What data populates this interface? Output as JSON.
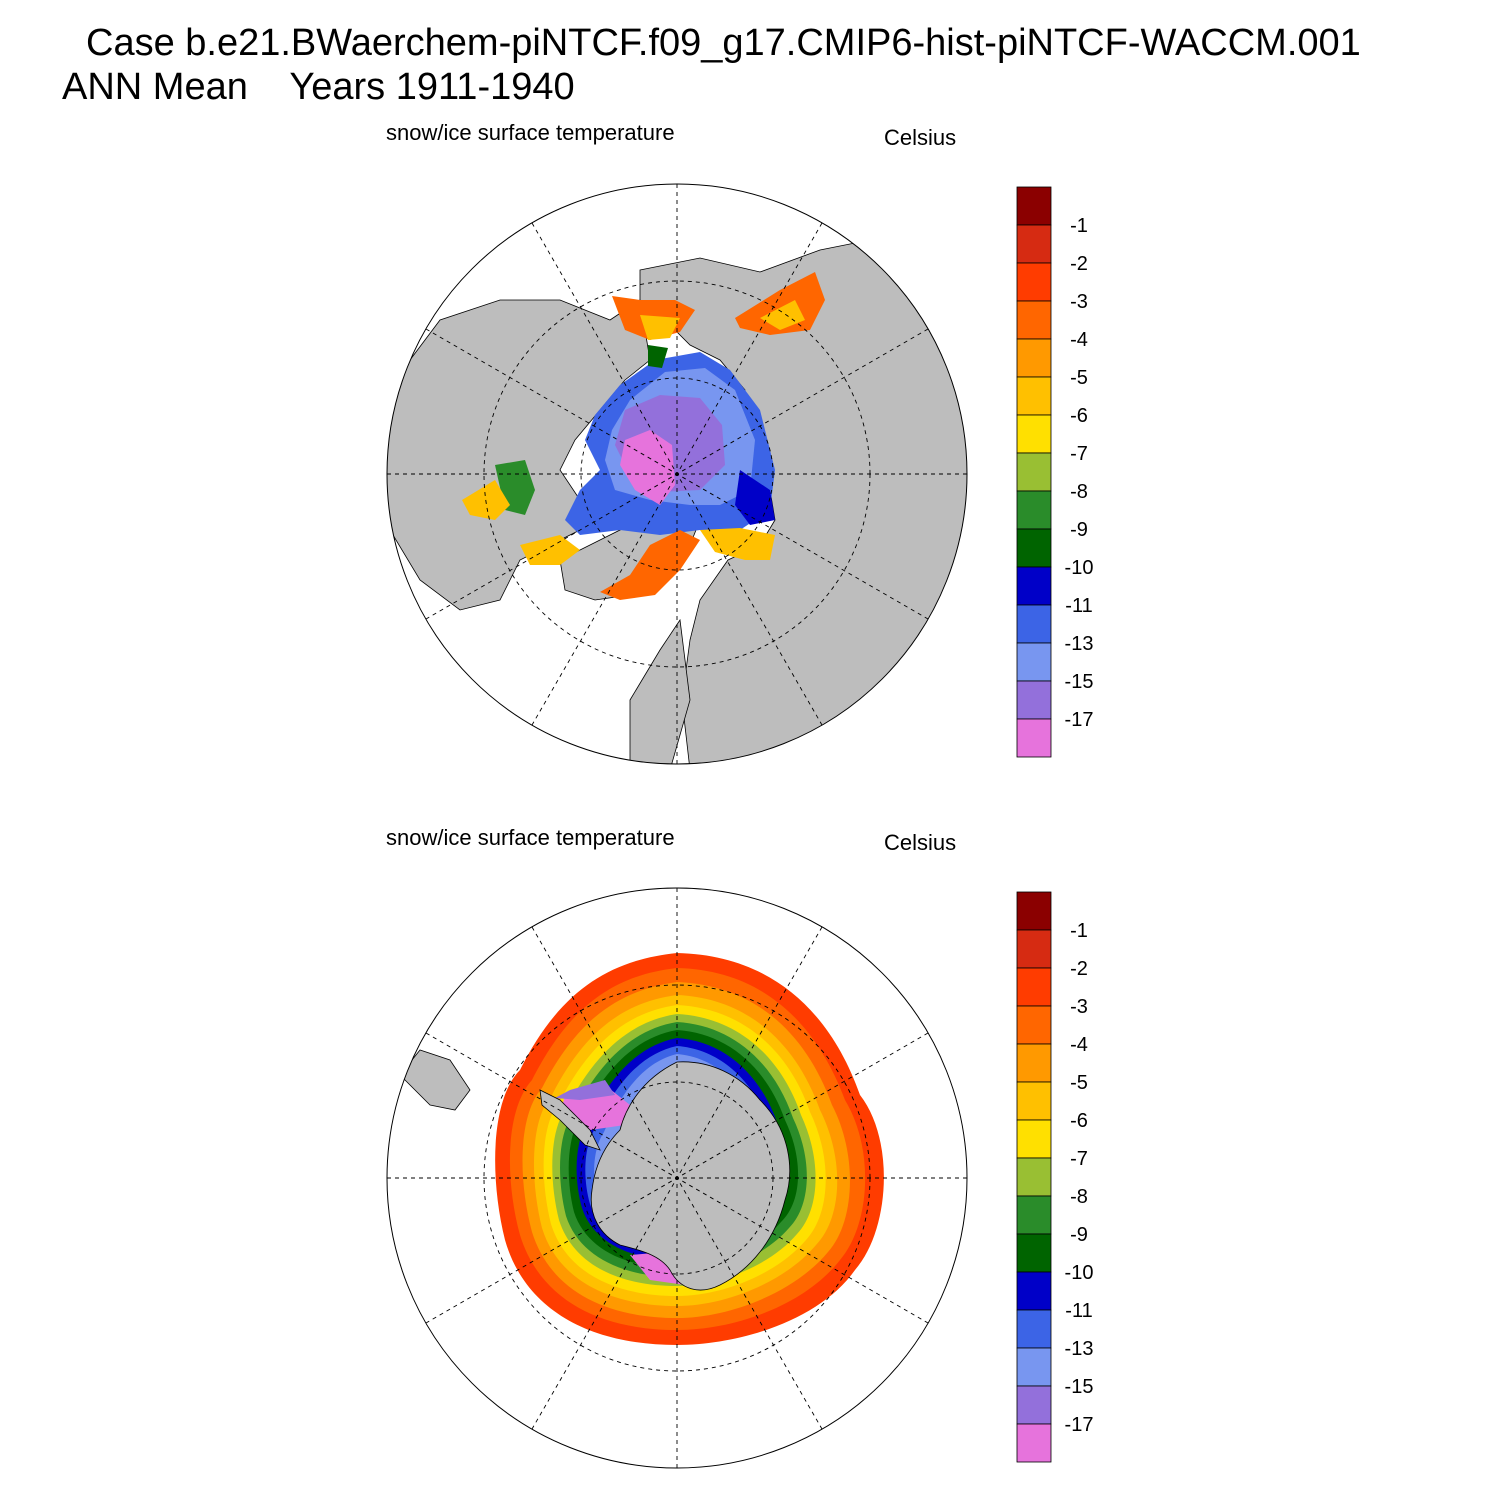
{
  "title": {
    "line1": "Case b.e21.BWaerchem-piNTCF.f09_g17.CMIP6-hist-piNTCF-WACCM.001",
    "line2": "ANN Mean    Years 1911-1940"
  },
  "panels": [
    {
      "id": "north",
      "hemisphere": "Northern Hemisphere polar stereographic",
      "field_title": "snow/ice surface temperature",
      "units": "Celsius"
    },
    {
      "id": "south",
      "hemisphere": "Southern Hemisphere polar stereographic",
      "field_title": "snow/ice surface temperature",
      "units": "Celsius"
    }
  ],
  "colorbar": {
    "labels": [
      "-1",
      "-2",
      "-3",
      "-4",
      "-5",
      "-6",
      "-7",
      "-8",
      "-9",
      "-10",
      "-11",
      "-13",
      "-15",
      "-17"
    ],
    "colors": [
      "#8b0000",
      "#d62b12",
      "#ff3c00",
      "#ff6600",
      "#ff9900",
      "#ffc000",
      "#ffe000",
      "#99bf33",
      "#2a8c2a",
      "#006400",
      "#0000c8",
      "#3c64e6",
      "#7896f0",
      "#9370db",
      "#e673dc"
    ]
  },
  "style": {
    "land_color": "#bdbdbd",
    "ocean_color": "#ffffff"
  }
}
